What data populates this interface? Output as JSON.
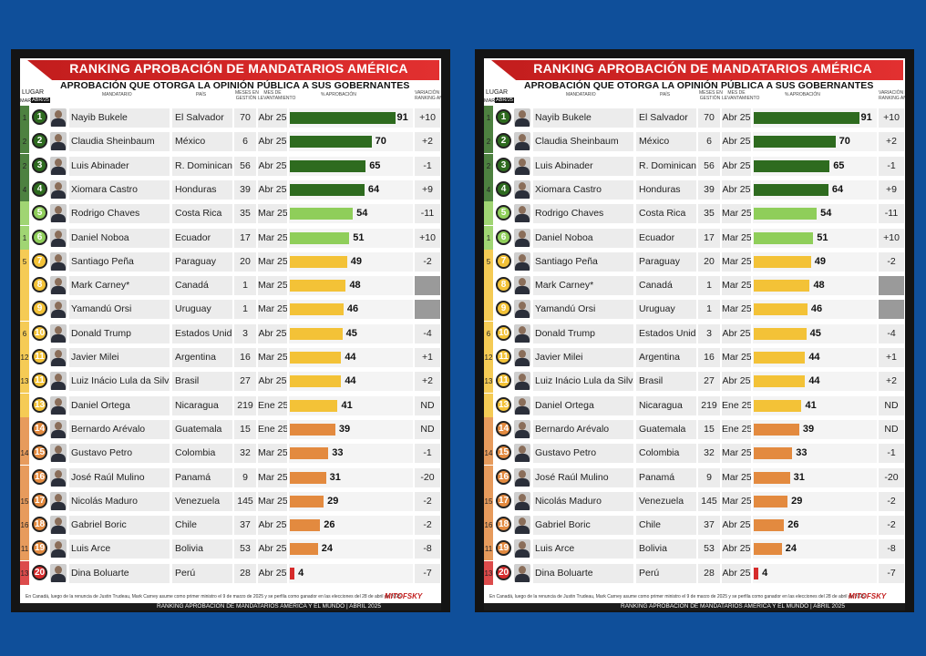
{
  "title": "RANKING APROBACIÓN DE MANDATARIOS AMÉRICA",
  "subtitle": "APROBACIÓN QUE OTORGA LA OPINIÓN PÚBLICA A SUS GOBERNANTES",
  "headers": {
    "lugar": "LUGAR",
    "lugar_prev": "MAR/25",
    "lugar_curr": "ABR/25",
    "mandatario": "MANDATARIO",
    "pais": "PAÍS",
    "meses_line1": "MESES EN",
    "meses_line2": "GESTIÓN",
    "mes_line1": "MES DE",
    "mes_line2": "LEVANTAMIENTO",
    "aprobacion": "% APROBACIÓN",
    "variacion_line1": "VARIACIÓN DEL",
    "variacion_line2": "RANKING ANTERIOR"
  },
  "footnote": "En Canadá, luego de la renuncia de Justin Trudeau, Mark Carney asume como primer ministro el 9 de marzo de 2025 y se perfila como ganador en las elecciones del 28 de abril de 2025",
  "bottom_text": "RANKING APROBACIÓN DE MANDATARIOS AMÉRICA Y EL MUNDO | ABRIL 2025",
  "logo_text": "MITOFSKY",
  "colors": {
    "dark_green": "#2e6b1f",
    "light_green": "#8fce5a",
    "yellow": "#f3c237",
    "orange": "#e38a3f",
    "red": "#d62b2b",
    "gray": "#b5b5b5"
  },
  "chart_data": {
    "type": "bar",
    "title": "RANKING APROBACIÓN DE MANDATARIOS AMÉRICA",
    "xlabel": "",
    "ylabel": "% APROBACIÓN",
    "xlim": [
      0,
      100
    ],
    "rows": [
      {
        "prev": "1",
        "rank": "1",
        "name": "Nayib Bukele",
        "country": "El Salvador",
        "months": "70",
        "month": "Abr 25",
        "value": 91,
        "var": "+10",
        "color": "dark_green"
      },
      {
        "prev": "2",
        "rank": "2",
        "name": "Claudia Sheinbaum",
        "country": "México",
        "months": "6",
        "month": "Abr 25",
        "value": 70,
        "var": "+2",
        "color": "dark_green"
      },
      {
        "prev": "2",
        "rank": "3",
        "name": "Luis Abinader",
        "country": "R. Dominicana",
        "months": "56",
        "month": "Abr 25",
        "value": 65,
        "var": "-1",
        "color": "dark_green"
      },
      {
        "prev": "4",
        "rank": "4",
        "name": "Xiomara Castro",
        "country": "Honduras",
        "months": "39",
        "month": "Abr 25",
        "value": 64,
        "var": "+9",
        "color": "dark_green"
      },
      {
        "prev": "",
        "rank": "5",
        "name": "Rodrigo Chaves",
        "country": "Costa Rica",
        "months": "35",
        "month": "Mar 25",
        "value": 54,
        "var": "-11",
        "color": "light_green"
      },
      {
        "prev": "1",
        "rank": "6",
        "name": "Daniel Noboa",
        "country": "Ecuador",
        "months": "17",
        "month": "Mar 25",
        "value": 51,
        "var": "+10",
        "color": "light_green"
      },
      {
        "prev": "5",
        "rank": "7",
        "name": "Santiago Peña",
        "country": "Paraguay",
        "months": "20",
        "month": "Mar 25",
        "value": 49,
        "var": "-2",
        "color": "yellow"
      },
      {
        "prev": "",
        "rank": "8",
        "name": "Mark Carney*",
        "country": "Canadá",
        "months": "1",
        "month": "Mar 25",
        "value": 48,
        "var": "",
        "color": "yellow"
      },
      {
        "prev": "",
        "rank": "9",
        "name": "Yamandú Orsi",
        "country": "Uruguay",
        "months": "1",
        "month": "Mar 25",
        "value": 46,
        "var": "",
        "color": "yellow"
      },
      {
        "prev": "6",
        "rank": "10",
        "name": "Donald Trump",
        "country": "Estados Unidos",
        "months": "3",
        "month": "Abr 25",
        "value": 45,
        "var": "-4",
        "color": "yellow"
      },
      {
        "prev": "12",
        "rank": "11",
        "name": "Javier Milei",
        "country": "Argentina",
        "months": "16",
        "month": "Mar 25",
        "value": 44,
        "var": "+1",
        "color": "yellow"
      },
      {
        "prev": "13",
        "rank": "11",
        "name": "Luiz Inácio Lula da Silva",
        "country": "Brasil",
        "months": "27",
        "month": "Abr 25",
        "value": 44,
        "var": "+2",
        "color": "yellow"
      },
      {
        "prev": "",
        "rank": "13",
        "name": "Daniel Ortega",
        "country": "Nicaragua",
        "months": "219",
        "month": "Ene 25",
        "value": 41,
        "var": "ND",
        "color": "yellow"
      },
      {
        "prev": "",
        "rank": "14",
        "name": "Bernardo Arévalo",
        "country": "Guatemala",
        "months": "15",
        "month": "Ene 25",
        "value": 39,
        "var": "ND",
        "color": "orange"
      },
      {
        "prev": "14",
        "rank": "15",
        "name": "Gustavo Petro",
        "country": "Colombia",
        "months": "32",
        "month": "Mar 25",
        "value": 33,
        "var": "-1",
        "color": "orange"
      },
      {
        "prev": "",
        "rank": "16",
        "name": "José Raúl Mulino",
        "country": "Panamá",
        "months": "9",
        "month": "Mar 25",
        "value": 31,
        "var": "-20",
        "color": "orange"
      },
      {
        "prev": "15",
        "rank": "17",
        "name": "Nicolás Maduro",
        "country": "Venezuela",
        "months": "145",
        "month": "Mar 25",
        "value": 29,
        "var": "-2",
        "color": "orange"
      },
      {
        "prev": "16",
        "rank": "18",
        "name": "Gabriel Boric",
        "country": "Chile",
        "months": "37",
        "month": "Abr 25",
        "value": 26,
        "var": "-2",
        "color": "orange"
      },
      {
        "prev": "11",
        "rank": "19",
        "name": "Luis Arce",
        "country": "Bolivia",
        "months": "53",
        "month": "Abr 25",
        "value": 24,
        "var": "-8",
        "color": "orange"
      },
      {
        "prev": "13",
        "rank": "20",
        "name": "Dina Boluarte",
        "country": "Perú",
        "months": "28",
        "month": "Abr 25",
        "value": 4,
        "var": "-7",
        "color": "red"
      }
    ]
  }
}
